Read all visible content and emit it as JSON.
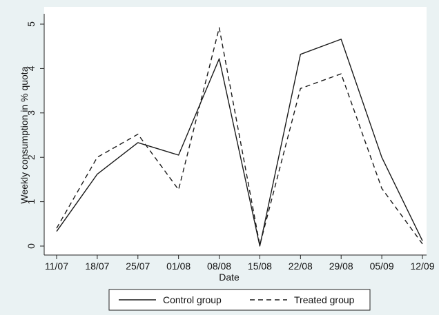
{
  "chart_data": {
    "type": "line",
    "title": "",
    "xlabel": "Date",
    "ylabel": "Weekly consumption in % quota",
    "categories": [
      "11/07",
      "18/07",
      "25/07",
      "01/08",
      "08/08",
      "15/08",
      "22/08",
      "29/08",
      "05/09",
      "12/09"
    ],
    "ylim": [
      0,
      5
    ],
    "yticks": [
      0,
      1,
      2,
      3,
      4,
      5
    ],
    "grid": false,
    "legend_position": "bottom",
    "series": [
      {
        "name": "Control group",
        "style": "solid",
        "color": "#1a1a1a",
        "values": [
          0.33,
          1.62,
          2.33,
          2.05,
          4.22,
          0.0,
          4.32,
          4.66,
          2.0,
          0.12
        ]
      },
      {
        "name": "Treated group",
        "style": "dashed",
        "color": "#1a1a1a",
        "values": [
          0.4,
          2.0,
          2.52,
          1.27,
          4.92,
          0.02,
          3.55,
          3.88,
          1.3,
          0.05
        ]
      }
    ]
  },
  "colors": {
    "outer_background": "#eaf2f3",
    "plot_background": "#ffffff",
    "line": "#1a1a1a"
  }
}
